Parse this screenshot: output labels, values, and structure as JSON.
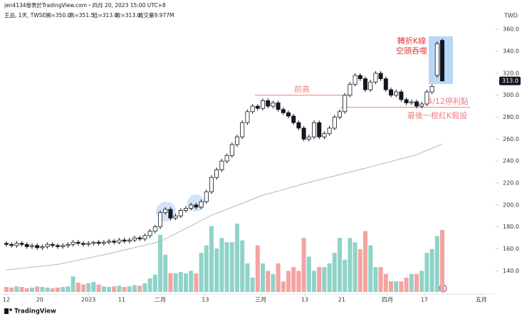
{
  "header": {
    "author_line": "jen4134發表於TradingView.com・四月 20, 2023 15:00 UTC+8",
    "symbol": "王品, 1天, TWSE",
    "open": "開=350.0",
    "high": "高=351.5",
    "low": "低=313.0",
    "close": "收=313.0",
    "volume": "成交量9.977M"
  },
  "chart_data": {
    "type": "candlestick",
    "currency": "TWD",
    "open": [
      165,
      164,
      163,
      165,
      164,
      162,
      163,
      161,
      162,
      164,
      163,
      162,
      163,
      164,
      166,
      165,
      164,
      165,
      166,
      165,
      166,
      167,
      166,
      168,
      167,
      168,
      170,
      169,
      172,
      176,
      180,
      193,
      196,
      188,
      190,
      195,
      197,
      200,
      198,
      203,
      212,
      225,
      232,
      240,
      245,
      255,
      262,
      275,
      285,
      290,
      288,
      295,
      290,
      293,
      287,
      284,
      281,
      275,
      270,
      260,
      262,
      275,
      262,
      265,
      270,
      280,
      285,
      300,
      310,
      318,
      315,
      305,
      312,
      320,
      315,
      305,
      300,
      303,
      296,
      293,
      294,
      290,
      292,
      303,
      318,
      350
    ],
    "high": [
      167,
      166,
      167,
      167,
      166,
      165,
      165,
      164,
      166,
      166,
      165,
      165,
      166,
      168,
      168,
      167,
      167,
      167,
      168,
      168,
      169,
      169,
      170,
      170,
      170,
      172,
      172,
      174,
      178,
      182,
      195,
      198,
      198,
      192,
      197,
      199,
      202,
      202,
      205,
      214,
      227,
      234,
      242,
      247,
      257,
      264,
      277,
      287,
      292,
      292,
      297,
      297,
      295,
      295,
      289,
      286,
      283,
      277,
      272,
      264,
      277,
      277,
      267,
      272,
      282,
      287,
      302,
      312,
      320,
      320,
      317,
      314,
      322,
      322,
      317,
      307,
      305,
      305,
      298,
      296,
      296,
      294,
      305,
      310,
      349,
      351.5
    ],
    "low": [
      162,
      161,
      161,
      162,
      160,
      160,
      159,
      159,
      160,
      161,
      160,
      160,
      161,
      162,
      163,
      162,
      162,
      163,
      163,
      163,
      164,
      164,
      164,
      165,
      165,
      166,
      167,
      167,
      170,
      174,
      178,
      191,
      186,
      186,
      188,
      193,
      195,
      196,
      196,
      201,
      210,
      223,
      230,
      238,
      243,
      253,
      260,
      273,
      283,
      286,
      286,
      288,
      288,
      285,
      282,
      279,
      273,
      268,
      258,
      258,
      260,
      260,
      260,
      263,
      268,
      278,
      283,
      298,
      308,
      313,
      303,
      303,
      310,
      313,
      303,
      298,
      298,
      294,
      291,
      291,
      288,
      288,
      290,
      301,
      316,
      313
    ],
    "close": [
      164,
      163,
      165,
      164,
      162,
      163,
      161,
      162,
      164,
      163,
      162,
      163,
      164,
      166,
      165,
      164,
      165,
      166,
      165,
      166,
      167,
      166,
      168,
      167,
      168,
      170,
      169,
      172,
      176,
      180,
      193,
      196,
      188,
      190,
      195,
      197,
      200,
      198,
      203,
      212,
      225,
      232,
      240,
      245,
      255,
      262,
      275,
      285,
      290,
      288,
      295,
      290,
      293,
      287,
      284,
      281,
      275,
      270,
      260,
      262,
      275,
      262,
      265,
      270,
      280,
      285,
      300,
      310,
      318,
      315,
      305,
      312,
      320,
      315,
      305,
      300,
      303,
      296,
      293,
      294,
      290,
      292,
      303,
      308,
      347,
      313
    ],
    "volume": [
      0.8,
      0.7,
      0.9,
      0.8,
      0.6,
      0.7,
      0.9,
      0.8,
      0.7,
      0.6,
      0.7,
      0.8,
      0.9,
      2.5,
      1.5,
      1.2,
      1.4,
      1.6,
      1.2,
      0.9,
      0.8,
      0.9,
      1.0,
      0.8,
      0.9,
      1.1,
      1.0,
      1.4,
      2.2,
      2.8,
      9.2,
      6.0,
      3.0,
      3.0,
      3.2,
      3.0,
      3.4,
      3.0,
      6.3,
      7.5,
      10.6,
      7.0,
      8.7,
      8.0,
      8.0,
      11.0,
      8.3,
      4.6,
      2.3,
      7.5,
      4.6,
      3.4,
      2.9,
      4.6,
      1.7,
      3.4,
      4.0,
      3.4,
      8.7,
      5.7,
      3.4,
      4.0,
      4.0,
      4.6,
      6.3,
      8.7,
      5.2,
      8.7,
      8.0,
      6.9,
      9.8,
      7.5,
      4.0,
      4.0,
      2.9,
      1.7,
      1.7,
      1.7,
      2.3,
      2.9,
      2.9,
      3.4,
      6.3,
      6.9,
      9.0,
      9.977
    ],
    "up_color": "#ffffff",
    "down_color": "#131722",
    "volume_up_color": "#8fd3c8",
    "volume_down_color": "#f4a3a1",
    "moving_average": {
      "x": [
        0,
        10,
        20,
        30,
        40,
        50,
        60,
        70,
        80,
        85
      ],
      "values": [
        140.7,
        145.8,
        155.6,
        166.6,
        190.6,
        208.8,
        221.8,
        233.5,
        245.8,
        255.5
      ],
      "color": "#b8b8b8"
    },
    "ylim": [
      122,
      366
    ],
    "yticks": [
      {
        "value": 140,
        "label": "140.0"
      },
      {
        "value": 160,
        "label": "160.0"
      },
      {
        "value": 180,
        "label": "180.0"
      },
      {
        "value": 200,
        "label": "200.0"
      },
      {
        "value": 220,
        "label": "220.0"
      },
      {
        "value": 240,
        "label": "240.0"
      },
      {
        "value": 260,
        "label": "260.0"
      },
      {
        "value": 280,
        "label": "280.0"
      },
      {
        "value": 300,
        "label": "300.0"
      },
      {
        "value": 320,
        "label": "320.0"
      },
      {
        "value": 340,
        "label": "340.0"
      },
      {
        "value": 360,
        "label": "360.0"
      }
    ],
    "xticks": [
      {
        "value": 0,
        "label": "12"
      },
      {
        "value": 6.5,
        "label": "20"
      },
      {
        "value": 16,
        "label": "2023"
      },
      {
        "value": 22.5,
        "label": "11"
      },
      {
        "value": 30,
        "label": "二月"
      },
      {
        "value": 38.8,
        "label": "13"
      },
      {
        "value": 49.6,
        "label": "三月"
      },
      {
        "value": 58.2,
        "label": "13"
      },
      {
        "value": 65.4,
        "label": "21"
      },
      {
        "value": 74.3,
        "label": "四月"
      },
      {
        "value": 81.5,
        "label": "17"
      },
      {
        "value": 92.6,
        "label": "五月"
      }
    ],
    "last_price": {
      "value": 313,
      "label": "313.0"
    },
    "annotations": {
      "prior_high": {
        "text": "前高",
        "level": 300
      },
      "take_profit": {
        "text": "4/12停利點",
        "level": 289
      },
      "assumption": "最後一根紅K假設",
      "reversal": [
        "轉折K線",
        "空頭吞噬"
      ],
      "color": "#f07f7f"
    }
  },
  "footer": {
    "logo": "TradingView"
  }
}
